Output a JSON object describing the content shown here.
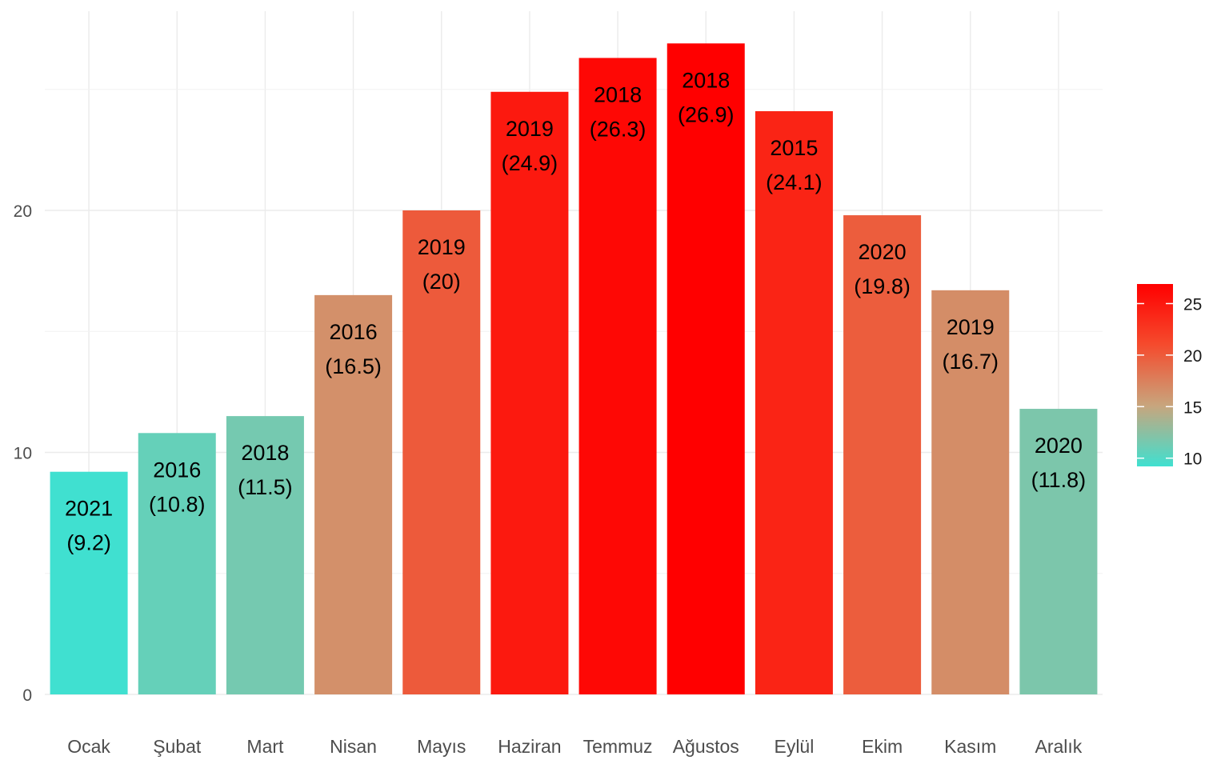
{
  "chart_data": {
    "type": "bar",
    "categories": [
      "Ocak",
      "Şubat",
      "Mart",
      "Nisan",
      "Mayıs",
      "Haziran",
      "Temmuz",
      "Ağustos",
      "Eylül",
      "Ekim",
      "Kasım",
      "Aralık"
    ],
    "values": [
      9.2,
      10.8,
      11.5,
      16.5,
      20,
      24.9,
      26.3,
      26.9,
      24.1,
      19.8,
      16.7,
      11.8
    ],
    "years": [
      "2021",
      "2016",
      "2018",
      "2016",
      "2019",
      "2019",
      "2018",
      "2018",
      "2015",
      "2020",
      "2019",
      "2020"
    ],
    "bar_labels": [
      [
        "2021",
        "(9.2)"
      ],
      [
        "2016",
        "(10.8)"
      ],
      [
        "2018",
        "(11.5)"
      ],
      [
        "2016",
        "(16.5)"
      ],
      [
        "2019",
        "(20)"
      ],
      [
        "2019",
        "(24.9)"
      ],
      [
        "2018",
        "(26.3)"
      ],
      [
        "2018",
        "(26.9)"
      ],
      [
        "2015",
        "(24.1)"
      ],
      [
        "2020",
        "(19.8)"
      ],
      [
        "2019",
        "(16.7)"
      ],
      [
        "2020",
        "(11.8)"
      ]
    ],
    "title": "",
    "xlabel": "",
    "ylabel": "",
    "ylim": [
      0,
      27.5
    ],
    "y_ticks": [
      0,
      10,
      20
    ],
    "grid": true,
    "legend": {
      "type": "colorbar",
      "placement": "right",
      "ticks": [
        10,
        15,
        20,
        25
      ],
      "range": [
        9.2,
        26.9
      ],
      "colors": [
        "#40E0D0",
        "#C8A57D",
        "#F54B2D",
        "#FF0000"
      ]
    }
  }
}
